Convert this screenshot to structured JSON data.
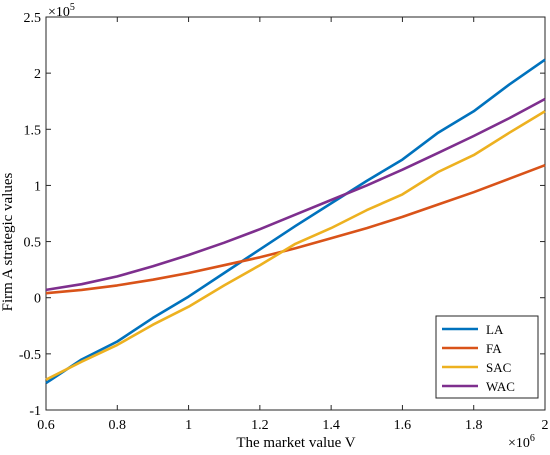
{
  "chart_data": {
    "type": "line",
    "xlabel": "The market value V",
    "ylabel": "Firm A strategic values",
    "x_exponent": "×10",
    "x_exponent_power": "6",
    "y_exponent": "×10",
    "y_exponent_power": "5",
    "xlim": [
      0.6,
      2.0
    ],
    "ylim": [
      -1.0,
      2.5
    ],
    "x_ticks": [
      0.6,
      0.8,
      1.0,
      1.2,
      1.4,
      1.6,
      1.8,
      2.0
    ],
    "x_tick_labels": [
      "0.6",
      "0.8",
      "1",
      "1.2",
      "1.4",
      "1.6",
      "1.8",
      "2"
    ],
    "y_ticks": [
      -1.0,
      -0.5,
      0.0,
      0.5,
      1.0,
      1.5,
      2.0,
      2.5
    ],
    "y_tick_labels": [
      "-1",
      "-0.5",
      "0",
      "0.5",
      "1",
      "1.5",
      "2",
      "2.5"
    ],
    "grid": false,
    "legend_position": "bottom-right",
    "x": [
      0.6,
      0.7,
      0.8,
      0.9,
      1.0,
      1.1,
      1.2,
      1.3,
      1.4,
      1.5,
      1.6,
      1.7,
      1.8,
      1.9,
      2.0
    ],
    "series": [
      {
        "name": "LA",
        "color": "#0072BD",
        "values": [
          -0.76,
          -0.55,
          -0.39,
          -0.18,
          0.01,
          0.22,
          0.43,
          0.64,
          0.84,
          1.04,
          1.23,
          1.47,
          1.66,
          1.9,
          2.12
        ]
      },
      {
        "name": "FA",
        "color": "#D95319",
        "values": [
          0.04,
          0.07,
          0.11,
          0.16,
          0.22,
          0.29,
          0.36,
          0.44,
          0.53,
          0.62,
          0.72,
          0.83,
          0.94,
          1.06,
          1.18
        ]
      },
      {
        "name": "SAC",
        "color": "#EDB120",
        "values": [
          -0.73,
          -0.57,
          -0.42,
          -0.24,
          -0.08,
          0.11,
          0.29,
          0.48,
          0.62,
          0.78,
          0.92,
          1.12,
          1.27,
          1.47,
          1.66
        ]
      },
      {
        "name": "WAC",
        "color": "#7E2F8E",
        "values": [
          0.07,
          0.12,
          0.19,
          0.28,
          0.38,
          0.49,
          0.61,
          0.74,
          0.87,
          1.0,
          1.14,
          1.29,
          1.44,
          1.6,
          1.77
        ]
      }
    ]
  }
}
